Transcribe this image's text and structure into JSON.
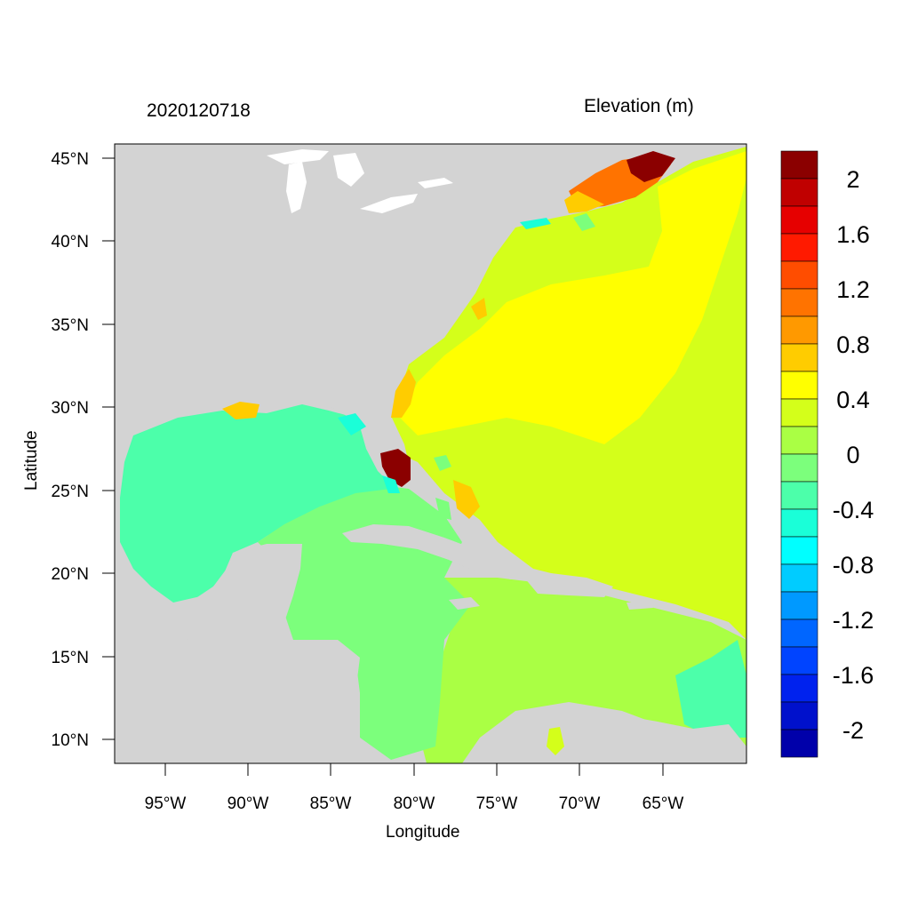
{
  "header": {
    "date_label": "2020120718",
    "variable_label": "Elevation (m)"
  },
  "axes": {
    "xlabel": "Longitude",
    "ylabel": "Latitude",
    "x_ticks": [
      "95°W",
      "90°W",
      "85°W",
      "80°W",
      "75°W",
      "70°W",
      "65°W"
    ],
    "y_ticks": [
      "45°N",
      "40°N",
      "35°N",
      "30°N",
      "25°N",
      "20°N",
      "15°N",
      "10°N"
    ]
  },
  "colorbar": {
    "labels": [
      "2",
      "1.6",
      "1.2",
      "0.8",
      "0.4",
      "0",
      "-0.4",
      "-0.8",
      "-1.2",
      "-1.6",
      "-2"
    ],
    "colors": [
      "#8b0000",
      "#c00000",
      "#e60000",
      "#ff1a00",
      "#ff4d00",
      "#ff7300",
      "#ff9900",
      "#ffcc00",
      "#ffff00",
      "#d4ff1a",
      "#aaff44",
      "#7cff7c",
      "#4cffaa",
      "#1affd8",
      "#00ffff",
      "#00ccff",
      "#0099ff",
      "#0066ff",
      "#0044ff",
      "#0022ee",
      "#0011cc",
      "#0000aa"
    ]
  },
  "colors": {
    "land": "#d3d3d3",
    "frame": "#000000"
  }
}
